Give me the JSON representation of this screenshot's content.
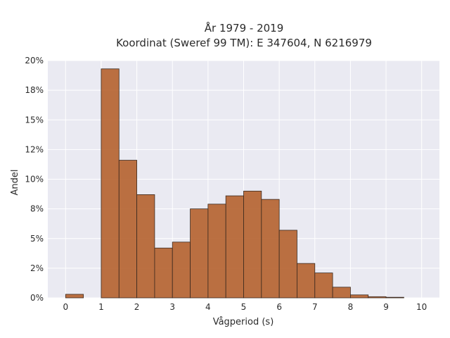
{
  "chart_data": {
    "type": "bar",
    "title_line1": "År 1979 - 2019",
    "title_line2": "Koordinat (Sweref 99 TM): E 347604, N 6216979",
    "xlabel": "Vågperiod (s)",
    "ylabel": "Andel",
    "x_ticks": [
      "0",
      "1",
      "2",
      "3",
      "4",
      "5",
      "6",
      "7",
      "8",
      "9",
      "10"
    ],
    "y_ticks": [
      "0%",
      "2%",
      "5%",
      "8%",
      "10%",
      "12%",
      "15%",
      "18%",
      "20%"
    ],
    "x_range": [
      -0.5,
      10.5
    ],
    "y_range": [
      0,
      20
    ],
    "bin_width": 0.5,
    "bins": [
      {
        "start": 0.0,
        "value": 0.3
      },
      {
        "start": 0.5,
        "value": 0.0
      },
      {
        "start": 1.0,
        "value": 19.3
      },
      {
        "start": 1.5,
        "value": 11.6
      },
      {
        "start": 2.0,
        "value": 8.7
      },
      {
        "start": 2.5,
        "value": 4.2
      },
      {
        "start": 3.0,
        "value": 4.7
      },
      {
        "start": 3.5,
        "value": 7.5
      },
      {
        "start": 4.0,
        "value": 7.9
      },
      {
        "start": 4.5,
        "value": 8.6
      },
      {
        "start": 5.0,
        "value": 9.0
      },
      {
        "start": 5.5,
        "value": 8.3
      },
      {
        "start": 6.0,
        "value": 5.7
      },
      {
        "start": 6.5,
        "value": 2.9
      },
      {
        "start": 7.0,
        "value": 2.1
      },
      {
        "start": 7.5,
        "value": 0.9
      },
      {
        "start": 8.0,
        "value": 0.25
      },
      {
        "start": 8.5,
        "value": 0.1
      },
      {
        "start": 9.0,
        "value": 0.05
      }
    ],
    "bar_color": "#b5622e",
    "bar_edge_color": "#3a2a20",
    "plot_background": "#eaeaf2",
    "grid_color": "#ffffff",
    "grid": true
  }
}
